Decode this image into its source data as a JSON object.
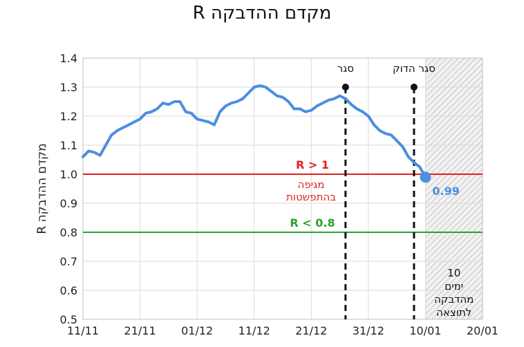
{
  "chart_data": {
    "type": "line",
    "title": "מקדם ההדבקה R",
    "ylabel": "מקדם ההדבקה R",
    "xlabel": "",
    "ylim": [
      0.5,
      1.4
    ],
    "yticks": [
      0.5,
      0.6,
      0.7,
      0.8,
      0.9,
      1.0,
      1.1,
      1.2,
      1.3,
      1.4
    ],
    "xlim": [
      0,
      70
    ],
    "xticks": [
      {
        "x": 0,
        "label": "11/11"
      },
      {
        "x": 10,
        "label": "21/11"
      },
      {
        "x": 20,
        "label": "01/12"
      },
      {
        "x": 30,
        "label": "11/12"
      },
      {
        "x": 40,
        "label": "21/12"
      },
      {
        "x": 50,
        "label": "31/12"
      },
      {
        "x": 60,
        "label": "10/01"
      },
      {
        "x": 70,
        "label": "20/01"
      }
    ],
    "grid": true,
    "series": [
      {
        "color": "#4a8fe0",
        "x": [
          0,
          1,
          2,
          3,
          4,
          5,
          6,
          7,
          8,
          9,
          10,
          11,
          12,
          13,
          14,
          15,
          16,
          17,
          18,
          19,
          20,
          21,
          22,
          23,
          24,
          25,
          26,
          27,
          28,
          29,
          30,
          31,
          32,
          33,
          34,
          35,
          36,
          37,
          38,
          39,
          40,
          41,
          42,
          43,
          44,
          45,
          46,
          47,
          48,
          49,
          50,
          51,
          52,
          53,
          54,
          55,
          56,
          57,
          58,
          59,
          60
        ],
        "values": [
          1.06,
          1.08,
          1.075,
          1.065,
          1.1,
          1.135,
          1.15,
          1.16,
          1.17,
          1.18,
          1.19,
          1.21,
          1.215,
          1.225,
          1.245,
          1.24,
          1.25,
          1.25,
          1.215,
          1.21,
          1.19,
          1.185,
          1.18,
          1.17,
          1.215,
          1.235,
          1.245,
          1.25,
          1.26,
          1.28,
          1.3,
          1.305,
          1.3,
          1.285,
          1.27,
          1.265,
          1.25,
          1.225,
          1.225,
          1.215,
          1.22,
          1.235,
          1.245,
          1.255,
          1.26,
          1.27,
          1.26,
          1.24,
          1.225,
          1.215,
          1.2,
          1.17,
          1.15,
          1.14,
          1.135,
          1.115,
          1.095,
          1.06,
          1.04,
          1.025,
          0.99
        ]
      }
    ],
    "final_point": {
      "x": 60,
      "y": 0.99,
      "label": "0.99"
    },
    "reference_lines": [
      {
        "y": 1.0,
        "color": "#e02020",
        "label": "R > 1",
        "sublabel": [
          "מגיפה",
          "בהתפשטות"
        ]
      },
      {
        "y": 0.8,
        "color": "#2aa02a",
        "label": "R < 0.8"
      }
    ],
    "event_lines": [
      {
        "x": 46,
        "label": "סגר"
      },
      {
        "x": 58,
        "label": "סגר הדוק"
      }
    ],
    "shaded_region": {
      "x_from": 60,
      "x_to": 70,
      "label": [
        "10",
        "ימים",
        "מהדבקה",
        "לתוצאה"
      ]
    }
  }
}
